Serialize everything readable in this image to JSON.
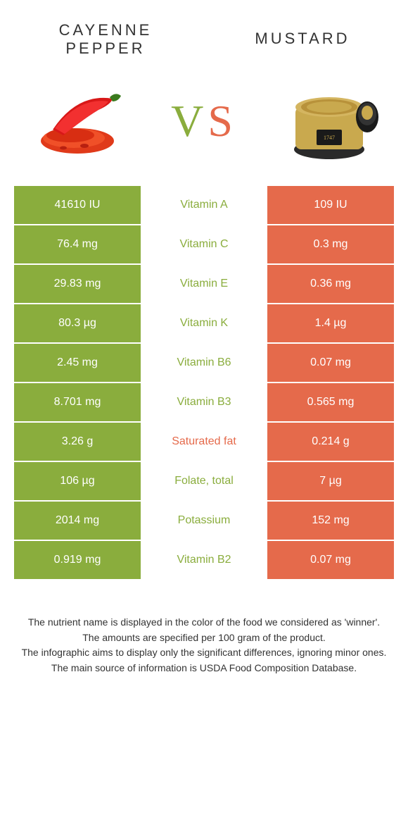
{
  "header": {
    "left_title": "CAYENNE PEPPER",
    "right_title": "MUSTARD",
    "vs_v": "V",
    "vs_s": "S"
  },
  "colors": {
    "green": "#8aad3d",
    "orange": "#e56a4b",
    "mid_green_text": "#8aad3d",
    "mid_orange_text": "#e56a4b"
  },
  "icons": {
    "left": "cayenne-pepper",
    "right": "mustard-jar"
  },
  "rows": [
    {
      "left": "41610 IU",
      "mid": "Vitamin A",
      "right": "109 IU",
      "winner": "left"
    },
    {
      "left": "76.4 mg",
      "mid": "Vitamin C",
      "right": "0.3 mg",
      "winner": "left"
    },
    {
      "left": "29.83 mg",
      "mid": "Vitamin E",
      "right": "0.36 mg",
      "winner": "left"
    },
    {
      "left": "80.3 µg",
      "mid": "Vitamin K",
      "right": "1.4 µg",
      "winner": "left"
    },
    {
      "left": "2.45 mg",
      "mid": "Vitamin B6",
      "right": "0.07 mg",
      "winner": "left"
    },
    {
      "left": "8.701 mg",
      "mid": "Vitamin B3",
      "right": "0.565 mg",
      "winner": "left"
    },
    {
      "left": "3.26 g",
      "mid": "Saturated fat",
      "right": "0.214 g",
      "winner": "right"
    },
    {
      "left": "106 µg",
      "mid": "Folate, total",
      "right": "7 µg",
      "winner": "left"
    },
    {
      "left": "2014 mg",
      "mid": "Potassium",
      "right": "152 mg",
      "winner": "left"
    },
    {
      "left": "0.919 mg",
      "mid": "Vitamin B2",
      "right": "0.07 mg",
      "winner": "left"
    }
  ],
  "footer": {
    "line1": "The nutrient name is displayed in the color of the food we considered as 'winner'.",
    "line2": "The amounts are specified per 100 gram of the product.",
    "line3": "The infographic aims to display only the significant differences, ignoring minor ones.",
    "line4": "The main source of information is USDA Food Composition Database."
  }
}
